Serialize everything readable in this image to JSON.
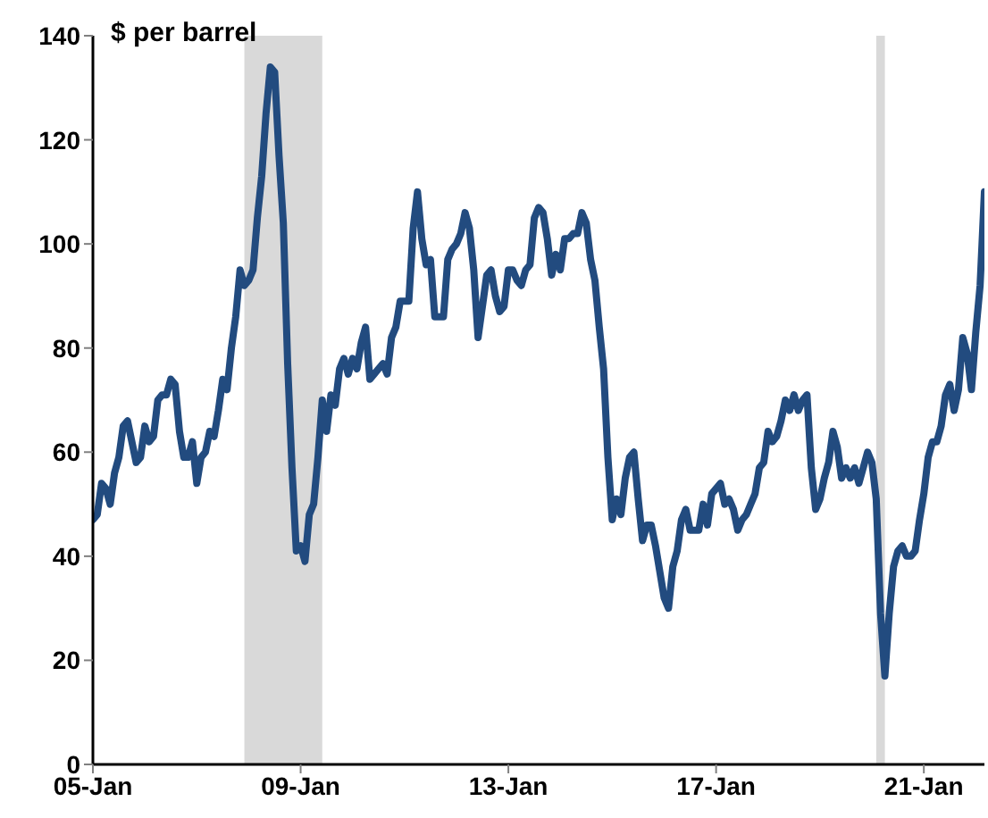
{
  "chart_data": {
    "type": "line",
    "ylabel": "$ per barrel",
    "xlim": [
      "2005-01",
      "2022-03"
    ],
    "xticks": [
      {
        "value": "2005-01",
        "label": "05-Jan"
      },
      {
        "value": "2009-01",
        "label": "09-Jan"
      },
      {
        "value": "2013-01",
        "label": "13-Jan"
      },
      {
        "value": "2017-01",
        "label": "17-Jan"
      },
      {
        "value": "2021-01",
        "label": "21-Jan"
      }
    ],
    "ylim": [
      0,
      140
    ],
    "yticks": [
      0,
      20,
      40,
      60,
      80,
      100,
      120,
      140
    ],
    "marker": "none",
    "line_style": "solid",
    "bands": [
      {
        "axis": "x",
        "from": "2007-12",
        "to": "2009-06",
        "color": "#d9d9d9"
      },
      {
        "axis": "x",
        "from": "2020-02",
        "to": "2020-04",
        "color": "#d9d9d9"
      }
    ],
    "series": [
      {
        "color": "#224b7f",
        "x": [
          "2005-01",
          "2005-02",
          "2005-03",
          "2005-04",
          "2005-05",
          "2005-06",
          "2005-07",
          "2005-08",
          "2005-09",
          "2005-10",
          "2005-11",
          "2005-12",
          "2006-01",
          "2006-02",
          "2006-03",
          "2006-04",
          "2006-05",
          "2006-06",
          "2006-07",
          "2006-08",
          "2006-09",
          "2006-10",
          "2006-11",
          "2006-12",
          "2007-01",
          "2007-02",
          "2007-03",
          "2007-04",
          "2007-05",
          "2007-06",
          "2007-07",
          "2007-08",
          "2007-09",
          "2007-10",
          "2007-11",
          "2007-12",
          "2008-01",
          "2008-02",
          "2008-03",
          "2008-04",
          "2008-05",
          "2008-06",
          "2008-07",
          "2008-08",
          "2008-09",
          "2008-10",
          "2008-11",
          "2008-12",
          "2009-01",
          "2009-02",
          "2009-03",
          "2009-04",
          "2009-05",
          "2009-06",
          "2009-07",
          "2009-08",
          "2009-09",
          "2009-10",
          "2009-11",
          "2009-12",
          "2010-01",
          "2010-02",
          "2010-03",
          "2010-04",
          "2010-05",
          "2010-06",
          "2010-07",
          "2010-08",
          "2010-09",
          "2010-10",
          "2010-11",
          "2010-12",
          "2011-01",
          "2011-02",
          "2011-03",
          "2011-04",
          "2011-05",
          "2011-06",
          "2011-07",
          "2011-08",
          "2011-09",
          "2011-10",
          "2011-11",
          "2011-12",
          "2012-01",
          "2012-02",
          "2012-03",
          "2012-04",
          "2012-05",
          "2012-06",
          "2012-07",
          "2012-08",
          "2012-09",
          "2012-10",
          "2012-11",
          "2012-12",
          "2013-01",
          "2013-02",
          "2013-03",
          "2013-04",
          "2013-05",
          "2013-06",
          "2013-07",
          "2013-08",
          "2013-09",
          "2013-10",
          "2013-11",
          "2013-12",
          "2014-01",
          "2014-02",
          "2014-03",
          "2014-04",
          "2014-05",
          "2014-06",
          "2014-07",
          "2014-08",
          "2014-09",
          "2014-10",
          "2014-11",
          "2014-12",
          "2015-01",
          "2015-02",
          "2015-03",
          "2015-04",
          "2015-05",
          "2015-06",
          "2015-07",
          "2015-08",
          "2015-09",
          "2015-10",
          "2015-11",
          "2015-12",
          "2016-01",
          "2016-02",
          "2016-03",
          "2016-04",
          "2016-05",
          "2016-06",
          "2016-07",
          "2016-08",
          "2016-09",
          "2016-10",
          "2016-11",
          "2016-12",
          "2017-01",
          "2017-02",
          "2017-03",
          "2017-04",
          "2017-05",
          "2017-06",
          "2017-07",
          "2017-08",
          "2017-09",
          "2017-10",
          "2017-11",
          "2017-12",
          "2018-01",
          "2018-02",
          "2018-03",
          "2018-04",
          "2018-05",
          "2018-06",
          "2018-07",
          "2018-08",
          "2018-09",
          "2018-10",
          "2018-11",
          "2018-12",
          "2019-01",
          "2019-02",
          "2019-03",
          "2019-04",
          "2019-05",
          "2019-06",
          "2019-07",
          "2019-08",
          "2019-09",
          "2019-10",
          "2019-11",
          "2019-12",
          "2020-01",
          "2020-02",
          "2020-03",
          "2020-04",
          "2020-05",
          "2020-06",
          "2020-07",
          "2020-08",
          "2020-09",
          "2020-10",
          "2020-11",
          "2020-12",
          "2021-01",
          "2021-02",
          "2021-03",
          "2021-04",
          "2021-05",
          "2021-06",
          "2021-07",
          "2021-08",
          "2021-09",
          "2021-10",
          "2021-11",
          "2021-12",
          "2022-01",
          "2022-02",
          "2022-03"
        ],
        "values": [
          47,
          48,
          54,
          53,
          50,
          56,
          59,
          65,
          66,
          62,
          58,
          59,
          65,
          62,
          63,
          70,
          71,
          71,
          74,
          73,
          64,
          59,
          59,
          62,
          54,
          59,
          60,
          64,
          63,
          68,
          74,
          72,
          80,
          86,
          95,
          92,
          93,
          95,
          105,
          113,
          125,
          134,
          133,
          117,
          104,
          77,
          57,
          41,
          42,
          39,
          48,
          50,
          59,
          70,
          64,
          71,
          69,
          76,
          78,
          75,
          78,
          76,
          81,
          84,
          74,
          75,
          76,
          77,
          75,
          82,
          84,
          89,
          89,
          89,
          103,
          110,
          101,
          96,
          97,
          86,
          86,
          86,
          97,
          99,
          100,
          102,
          106,
          103,
          95,
          82,
          88,
          94,
          95,
          90,
          87,
          88,
          95,
          95,
          93,
          92,
          95,
          96,
          105,
          107,
          106,
          101,
          94,
          98,
          95,
          101,
          101,
          102,
          102,
          106,
          104,
          97,
          93,
          84,
          76,
          59,
          47,
          51,
          48,
          55,
          59,
          60,
          51,
          43,
          46,
          46,
          42,
          37,
          32,
          30,
          38,
          41,
          47,
          49,
          45,
          45,
          45,
          50,
          46,
          52,
          53,
          54,
          50,
          51,
          49,
          45,
          47,
          48,
          50,
          52,
          57,
          58,
          64,
          62,
          63,
          66,
          70,
          68,
          71,
          68,
          70,
          71,
          57,
          49,
          51,
          55,
          58,
          64,
          61,
          55,
          57,
          55,
          57,
          54,
          57,
          60,
          58,
          51,
          29,
          17,
          29,
          38,
          41,
          42,
          40,
          40,
          41,
          47,
          52,
          59,
          62,
          62,
          65,
          71,
          73,
          68,
          72,
          82,
          79,
          72,
          83,
          92,
          110
        ]
      }
    ]
  }
}
